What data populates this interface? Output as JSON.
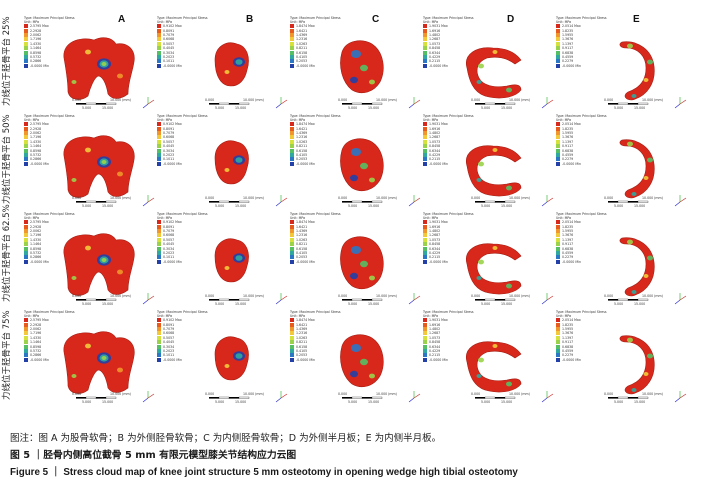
{
  "figure": {
    "columns": [
      "A",
      "B",
      "C",
      "D",
      "E"
    ],
    "rows": [
      {
        "label": "力线位于胫骨平台 25%"
      },
      {
        "label": "力线位于胫骨平台 50%"
      },
      {
        "label": "力线位于胫骨平台 62.5%"
      },
      {
        "label": "力线位于胫骨平台 75%"
      }
    ],
    "legend_title": [
      "Type: Maximum Principal Stress",
      "Unit: MPa"
    ],
    "legend_colors": [
      "#d8281b",
      "#e75b1d",
      "#f1962a",
      "#f3c93a",
      "#d6e23c",
      "#9ad24a",
      "#55bf63",
      "#2fa9a0",
      "#2a77c6",
      "#2240a8"
    ],
    "legend_values": [
      [
        "2.5795 Max",
        "2.2928",
        "2.0062",
        "1.7196",
        "1.4330",
        "1.1464",
        "0.8598",
        "0.5732",
        "0.2866",
        "-0.0000 Min"
      ],
      [
        "0.9102 Max",
        "0.8091",
        "0.7079",
        "0.6068",
        "0.5057",
        "0.4045",
        "0.3034",
        "0.2023",
        "0.1011",
        "-0.0000 Min"
      ],
      [
        "1.8474 Max",
        "1.6421",
        "1.4369",
        "1.2316",
        "1.0263",
        "0.8211",
        "0.6158",
        "0.4105",
        "0.2053",
        "-0.0000 Min"
      ],
      [
        "1.9031 Max",
        "1.6916",
        "1.4802",
        "1.2687",
        "1.0573",
        "0.8458",
        "0.6344",
        "0.4229",
        "0.2115",
        "-0.0000 Min"
      ],
      [
        "2.0514 Max",
        "1.8235",
        "1.5955",
        "1.3676",
        "1.1397",
        "0.9117",
        "0.6838",
        "0.4559",
        "0.2279",
        "-0.0000 Min"
      ]
    ],
    "scale_labels": [
      "0.000",
      "10.000 (mm)",
      "5.000",
      "15.000"
    ]
  },
  "caption": {
    "note": "图注：图 A 为股骨软骨；B 为外侧胫骨软骨；C 为内侧胫骨软骨；D 为外侧半月板；E 为内侧半月板。",
    "title_cn": "图 5 ｜胫骨内侧高位截骨 5 mm 有限元模型膝关节结构应力云图",
    "title_en": "Figure 5 ｜ Stress cloud map of knee joint structure 5 mm osteotomy in opening wedge high tibial osteotomy"
  }
}
